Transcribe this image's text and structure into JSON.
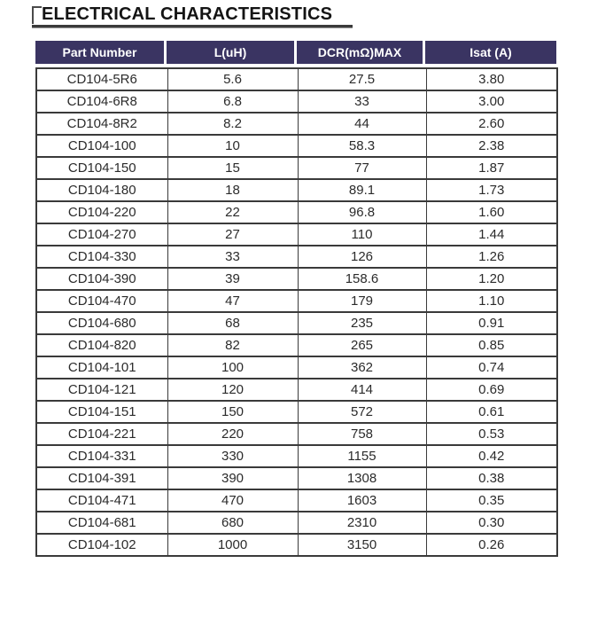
{
  "title": "ELECTRICAL CHARACTERISTICS",
  "colors": {
    "header_bg": "#3a3462",
    "header_text": "#ffffff",
    "body_text": "#2b2b2b",
    "border": "#3a3a3a",
    "title_underline": "#3b3b3b"
  },
  "table": {
    "headers": [
      "Part Number",
      "L(uH)",
      "DCR(mΩ)MAX",
      "Isat (A)"
    ],
    "rows": [
      {
        "part": "CD104-5R6",
        "l_uh": "5.6",
        "dcr": "27.5",
        "isat": "3.80"
      },
      {
        "part": "CD104-6R8",
        "l_uh": "6.8",
        "dcr": "33",
        "isat": "3.00"
      },
      {
        "part": "CD104-8R2",
        "l_uh": "8.2",
        "dcr": "44",
        "isat": "2.60"
      },
      {
        "part": "CD104-100",
        "l_uh": "10",
        "dcr": "58.3",
        "isat": "2.38"
      },
      {
        "part": "CD104-150",
        "l_uh": "15",
        "dcr": "77",
        "isat": "1.87"
      },
      {
        "part": "CD104-180",
        "l_uh": "18",
        "dcr": "89.1",
        "isat": "1.73"
      },
      {
        "part": "CD104-220",
        "l_uh": "22",
        "dcr": "96.8",
        "isat": "1.60"
      },
      {
        "part": "CD104-270",
        "l_uh": "27",
        "dcr": "110",
        "isat": "1.44"
      },
      {
        "part": "CD104-330",
        "l_uh": "33",
        "dcr": "126",
        "isat": "1.26"
      },
      {
        "part": "CD104-390",
        "l_uh": "39",
        "dcr": "158.6",
        "isat": "1.20"
      },
      {
        "part": "CD104-470",
        "l_uh": "47",
        "dcr": "179",
        "isat": "1.10"
      },
      {
        "part": "CD104-680",
        "l_uh": "68",
        "dcr": "235",
        "isat": "0.91"
      },
      {
        "part": "CD104-820",
        "l_uh": "82",
        "dcr": "265",
        "isat": "0.85"
      },
      {
        "part": "CD104-101",
        "l_uh": "100",
        "dcr": "362",
        "isat": "0.74"
      },
      {
        "part": "CD104-121",
        "l_uh": "120",
        "dcr": "414",
        "isat": "0.69"
      },
      {
        "part": "CD104-151",
        "l_uh": "150",
        "dcr": "572",
        "isat": "0.61"
      },
      {
        "part": "CD104-221",
        "l_uh": "220",
        "dcr": "758",
        "isat": "0.53"
      },
      {
        "part": "CD104-331",
        "l_uh": "330",
        "dcr": "1155",
        "isat": "0.42"
      },
      {
        "part": "CD104-391",
        "l_uh": "390",
        "dcr": "1308",
        "isat": "0.38"
      },
      {
        "part": "CD104-471",
        "l_uh": "470",
        "dcr": "1603",
        "isat": "0.35"
      },
      {
        "part": "CD104-681",
        "l_uh": "680",
        "dcr": "2310",
        "isat": "0.30"
      },
      {
        "part": "CD104-102",
        "l_uh": "1000",
        "dcr": "3150",
        "isat": "0.26"
      }
    ]
  }
}
